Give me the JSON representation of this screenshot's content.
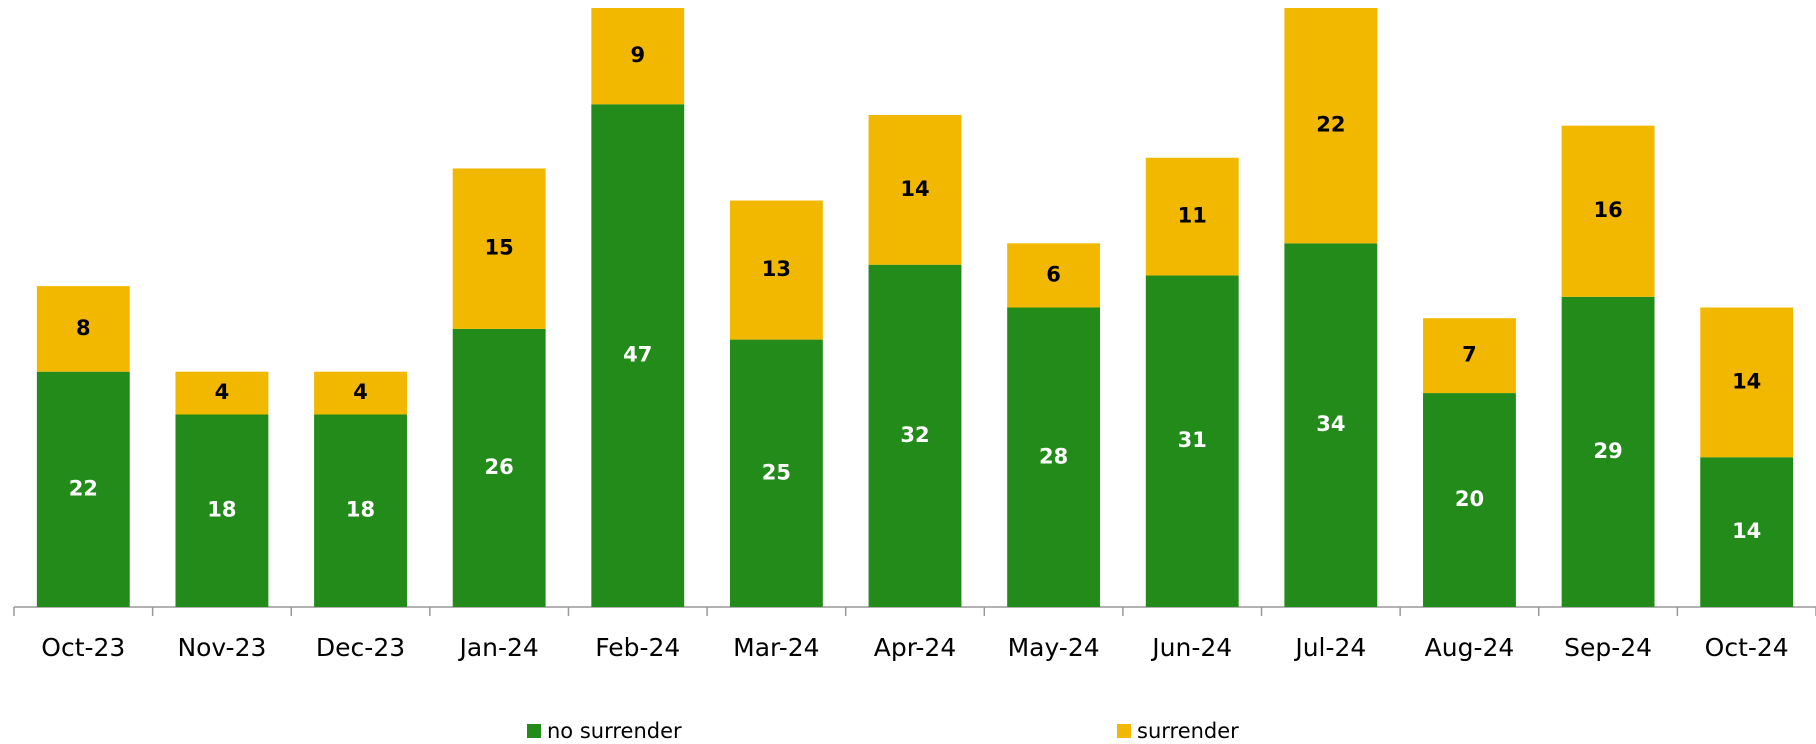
{
  "chart_data": {
    "type": "stacked_bar",
    "categories": [
      "Oct-23",
      "Nov-23",
      "Dec-23",
      "Jan-24",
      "Feb-24",
      "Mar-24",
      "Apr-24",
      "May-24",
      "Jun-24",
      "Jul-24",
      "Aug-24",
      "Sep-24",
      "Oct-24"
    ],
    "series": [
      {
        "name": "no surrender",
        "color": "#228b1a",
        "label_color": "#ffffff",
        "values": [
          22,
          18,
          18,
          26,
          47,
          25,
          32,
          28,
          31,
          34,
          20,
          29,
          14
        ]
      },
      {
        "name": "surrender",
        "color": "#f2b800",
        "label_color": "#000000",
        "values": [
          8,
          4,
          4,
          15,
          9,
          13,
          14,
          6,
          11,
          22,
          7,
          16,
          14
        ]
      }
    ],
    "legend": "bottom"
  }
}
